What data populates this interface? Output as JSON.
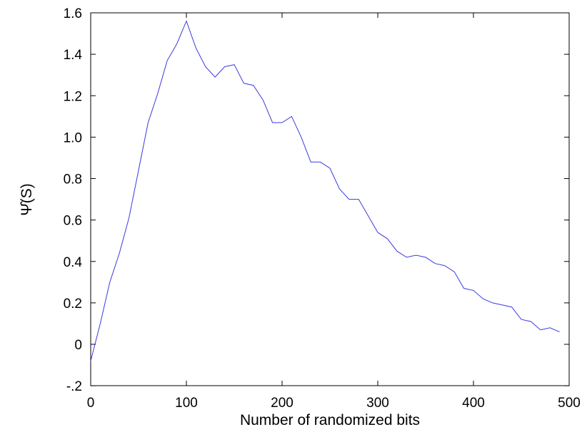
{
  "chart_data": {
    "type": "line",
    "title": "",
    "xlabel": "Number of randomized bits",
    "ylabel": "Ψ̂(S)",
    "xlim": [
      0,
      500
    ],
    "ylim": [
      -0.2,
      1.6
    ],
    "xticks": [
      0,
      100,
      200,
      300,
      400,
      500
    ],
    "xtick_labels": [
      "0",
      "100",
      "200",
      "300",
      "400",
      "500"
    ],
    "yticks": [
      -0.2,
      0,
      0.2,
      0.4,
      0.6,
      0.8,
      1.0,
      1.2,
      1.4,
      1.6
    ],
    "ytick_labels": [
      "-.2",
      "0",
      "0.2",
      "0.4",
      "0.6",
      "0.8",
      "1.0",
      "1.2",
      "1.4",
      "1.6"
    ],
    "grid": false,
    "series": [
      {
        "color": "#3a3ae0",
        "x": [
          0,
          10,
          20,
          30,
          40,
          50,
          60,
          70,
          80,
          90,
          100,
          110,
          120,
          130,
          140,
          150,
          160,
          170,
          180,
          190,
          200,
          210,
          220,
          230,
          240,
          250,
          260,
          270,
          280,
          290,
          300,
          310,
          320,
          330,
          340,
          350,
          360,
          370,
          380,
          390,
          400,
          410,
          420,
          430,
          440,
          450,
          460,
          470,
          480,
          490
        ],
        "y": [
          -0.08,
          0.1,
          0.3,
          0.44,
          0.61,
          0.84,
          1.07,
          1.21,
          1.37,
          1.45,
          1.56,
          1.43,
          1.34,
          1.29,
          1.34,
          1.35,
          1.26,
          1.25,
          1.18,
          1.07,
          1.07,
          1.1,
          1.0,
          0.88,
          0.88,
          0.85,
          0.75,
          0.7,
          0.7,
          0.62,
          0.54,
          0.51,
          0.45,
          0.42,
          0.43,
          0.42,
          0.39,
          0.38,
          0.35,
          0.27,
          0.26,
          0.22,
          0.2,
          0.19,
          0.18,
          0.12,
          0.11,
          0.07,
          0.08,
          0.06
        ]
      }
    ]
  }
}
